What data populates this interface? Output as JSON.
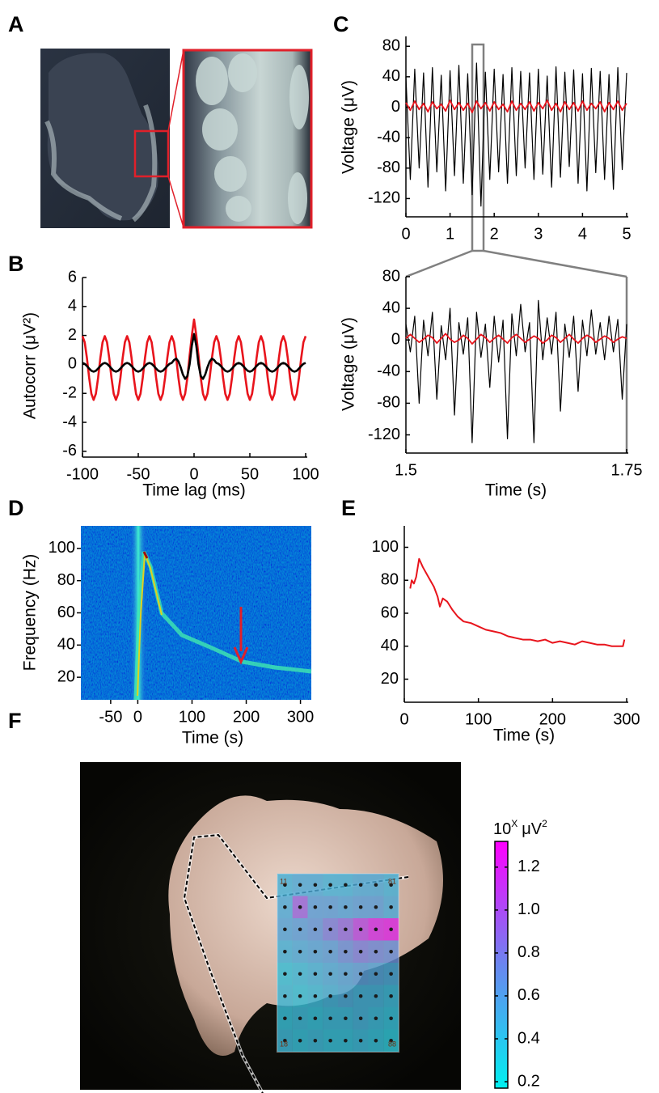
{
  "panel_labels": [
    "A",
    "B",
    "C",
    "D",
    "E",
    "F"
  ],
  "chart_data": [
    {
      "type": "line",
      "ylabel": "Autocorr (μV²)",
      "xlabel": "Time lag (ms)",
      "xlim": [
        -100,
        100
      ],
      "ylim": [
        -6.4,
        6
      ],
      "xticks": [
        -100,
        -50,
        0,
        50,
        100
      ],
      "yticks": [
        6,
        4,
        2,
        0,
        -2,
        -4,
        -6
      ],
      "x": [
        -100,
        -98,
        -96,
        -94,
        -92,
        -90,
        -88,
        -86,
        -84,
        -82,
        -80,
        -78,
        -76,
        -74,
        -72,
        -70,
        -68,
        -66,
        -64,
        -62,
        -60,
        -58,
        -56,
        -54,
        -52,
        -50,
        -48,
        -46,
        -44,
        -42,
        -40,
        -38,
        -36,
        -34,
        -32,
        -30,
        -28,
        -26,
        -24,
        -22,
        -20,
        -18,
        -16,
        -14,
        -12,
        -10,
        -8,
        -6,
        -4,
        -2,
        0,
        2,
        4,
        6,
        8,
        10,
        12,
        14,
        16,
        18,
        20,
        22,
        24,
        26,
        28,
        30,
        32,
        34,
        36,
        38,
        40,
        42,
        44,
        46,
        48,
        50,
        52,
        54,
        56,
        58,
        60,
        62,
        64,
        66,
        68,
        70,
        72,
        74,
        76,
        78,
        80,
        82,
        84,
        86,
        88,
        90,
        92,
        94,
        96,
        98,
        100
      ],
      "series": [
        {
          "color": "#e8141c",
          "values": [
            1.95,
            1.53,
            0.43,
            -0.93,
            -2.03,
            -2.45,
            -2.03,
            -0.93,
            0.43,
            1.53,
            1.95,
            1.53,
            0.43,
            -0.93,
            -2.03,
            -2.45,
            -2.03,
            -0.93,
            0.43,
            1.53,
            1.95,
            1.53,
            0.43,
            -0.93,
            -2.03,
            -2.45,
            -2.03,
            -0.93,
            0.43,
            1.53,
            1.95,
            1.53,
            0.43,
            -0.93,
            -2.03,
            -2.45,
            -2.03,
            -0.93,
            0.43,
            1.53,
            1.95,
            1.53,
            0.43,
            -0.93,
            -2.03,
            -2.45,
            -2.03,
            -0.93,
            0.6,
            2.0,
            3.1,
            2.0,
            0.6,
            -0.93,
            -2.03,
            -2.45,
            -2.03,
            -0.93,
            0.43,
            1.53,
            1.95,
            1.53,
            0.43,
            -0.93,
            -2.03,
            -2.45,
            -2.03,
            -0.93,
            0.43,
            1.53,
            1.95,
            1.53,
            0.43,
            -0.93,
            -2.03,
            -2.45,
            -2.03,
            -0.93,
            0.43,
            1.53,
            1.95,
            1.53,
            0.43,
            -0.93,
            -2.03,
            -2.45,
            -2.03,
            -0.93,
            0.43,
            1.53,
            1.95,
            1.53,
            0.43,
            -0.93,
            -2.03,
            -2.45,
            -2.03,
            -0.93,
            0.43,
            1.53,
            1.95
          ]
        },
        {
          "color": "#000000",
          "values": [
            0.1,
            0.04,
            -0.11,
            -0.29,
            -0.44,
            -0.5,
            -0.44,
            -0.29,
            -0.11,
            0.04,
            0.1,
            0.04,
            -0.11,
            -0.29,
            -0.44,
            -0.5,
            -0.44,
            -0.29,
            -0.11,
            0.04,
            0.1,
            0.04,
            -0.11,
            -0.29,
            -0.44,
            -0.5,
            -0.44,
            -0.29,
            -0.11,
            0.04,
            0.1,
            0.04,
            -0.11,
            -0.29,
            -0.44,
            -0.5,
            -0.44,
            -0.29,
            -0.11,
            0.04,
            0.1,
            0.3,
            0.4,
            0.2,
            -0.2,
            -0.7,
            -1.0,
            -0.8,
            0.0,
            1.3,
            2.1,
            1.3,
            0.0,
            -0.8,
            -1.0,
            -0.7,
            -0.2,
            0.2,
            0.4,
            0.3,
            0.1,
            0.04,
            -0.11,
            -0.29,
            -0.44,
            -0.5,
            -0.44,
            -0.29,
            -0.11,
            0.04,
            0.1,
            0.04,
            -0.11,
            -0.29,
            -0.44,
            -0.5,
            -0.44,
            -0.29,
            -0.11,
            0.04,
            0.1,
            0.04,
            -0.11,
            -0.29,
            -0.44,
            -0.5,
            -0.44,
            -0.29,
            -0.11,
            0.04,
            0.1,
            0.04,
            -0.11,
            -0.29,
            -0.44,
            -0.5,
            -0.44,
            -0.29,
            -0.11,
            0.04,
            0.1
          ]
        }
      ]
    },
    {
      "type": "line",
      "ylabel": "Voltage (μV)",
      "xlim": [
        0,
        5
      ],
      "ylim": [
        -144,
        93
      ],
      "xticks": [
        0,
        1,
        2,
        3,
        4,
        5
      ],
      "yticks": [
        80,
        40,
        0,
        -40,
        -80,
        -120
      ],
      "x": [
        0,
        0.1,
        0.2,
        0.3,
        0.4,
        0.5,
        0.6,
        0.7,
        0.8,
        0.9,
        1,
        1.1,
        1.2,
        1.3,
        1.4,
        1.5,
        1.6,
        1.7,
        1.8,
        1.9,
        2,
        2.1,
        2.2,
        2.3,
        2.4,
        2.5,
        2.6,
        2.7,
        2.8,
        2.9,
        3,
        3.1,
        3.2,
        3.3,
        3.4,
        3.5,
        3.6,
        3.7,
        3.8,
        3.9,
        4,
        4.1,
        4.2,
        4.3,
        4.4,
        4.5,
        4.6,
        4.7,
        4.8,
        4.9,
        5
      ],
      "series": [
        {
          "color": "#000000",
          "values": [
            40,
            -95,
            50,
            -80,
            45,
            -105,
            52,
            -85,
            42,
            -110,
            48,
            -90,
            55,
            -100,
            44,
            -115,
            58,
            -130,
            46,
            -95,
            50,
            -85,
            43,
            -100,
            52,
            -90,
            47,
            -80,
            45,
            -95,
            50,
            -88,
            41,
            -105,
            53,
            -92,
            46,
            -78,
            49,
            -100,
            44,
            -110,
            51,
            -86,
            47,
            -95,
            43,
            -108,
            52,
            -82,
            45
          ]
        },
        {
          "color": "#e8141c",
          "values": [
            6,
            -4,
            8,
            -3,
            5,
            -6,
            7,
            -2,
            4,
            -5,
            9,
            -3,
            6,
            -4,
            5,
            -7,
            8,
            -2,
            6,
            -5,
            7,
            -3,
            4,
            -6,
            8,
            -4,
            5,
            -3,
            7,
            -5,
            6,
            -2,
            9,
            -4,
            5,
            -6,
            7,
            -3,
            6,
            -5,
            8,
            -4,
            5,
            -2,
            7,
            -6,
            6,
            -3,
            8,
            -4,
            5
          ]
        }
      ]
    },
    {
      "type": "line",
      "ylabel": "Voltage (μV)",
      "xlabel": "Time (s)",
      "xlim": [
        1.5,
        1.75
      ],
      "ylim": [
        -143,
        80
      ],
      "xticks": [
        1.5,
        1.75
      ],
      "yticks": [
        80,
        40,
        0,
        -40,
        -80,
        -120
      ],
      "x": [
        1.5,
        1.505,
        1.51,
        1.515,
        1.52,
        1.525,
        1.53,
        1.535,
        1.54,
        1.545,
        1.55,
        1.555,
        1.56,
        1.565,
        1.57,
        1.575,
        1.58,
        1.585,
        1.59,
        1.595,
        1.6,
        1.605,
        1.61,
        1.615,
        1.62,
        1.625,
        1.63,
        1.635,
        1.64,
        1.645,
        1.65,
        1.655,
        1.66,
        1.665,
        1.67,
        1.675,
        1.68,
        1.685,
        1.69,
        1.695,
        1.7,
        1.705,
        1.71,
        1.715,
        1.72,
        1.725,
        1.73,
        1.735,
        1.74,
        1.745,
        1.75
      ],
      "series": [
        {
          "color": "#000000",
          "values": [
            20,
            -15,
            30,
            -80,
            25,
            -20,
            35,
            -75,
            18,
            -25,
            40,
            -95,
            22,
            -18,
            28,
            -130,
            35,
            -22,
            20,
            -60,
            30,
            -28,
            25,
            -125,
            33,
            -20,
            45,
            -15,
            22,
            -130,
            50,
            -25,
            28,
            -18,
            35,
            -90,
            20,
            -22,
            30,
            -65,
            25,
            -20,
            38,
            -18,
            22,
            -25,
            30,
            -15,
            26,
            -75,
            20
          ]
        },
        {
          "color": "#e8141c",
          "values": [
            2,
            7,
            2,
            -3,
            1,
            6,
            3,
            -4,
            2,
            8,
            1,
            -3,
            0,
            6,
            2,
            -5,
            1,
            7,
            3,
            -3,
            2,
            6,
            1,
            -4,
            3,
            7,
            2,
            -3,
            1,
            5,
            2,
            -4,
            0,
            6,
            3,
            -3,
            2,
            7,
            1,
            -4,
            2,
            6,
            3,
            -3,
            1,
            5,
            2,
            -3,
            1,
            4,
            2
          ]
        }
      ]
    },
    {
      "type": "image",
      "ylabel": "Frequency (Hz)",
      "xlabel": "Time (s)",
      "xlim": [
        -105,
        320
      ],
      "ylim": [
        6,
        114
      ],
      "xticks": [
        -50,
        0,
        100,
        200,
        300
      ],
      "yticks": [
        20,
        40,
        60,
        80,
        100
      ]
    },
    {
      "type": "line",
      "xlabel": "Time (s)",
      "xlim": [
        0,
        300
      ],
      "ylim": [
        6,
        113
      ],
      "xticks": [
        0,
        100,
        200,
        300
      ],
      "yticks": [
        20,
        40,
        60,
        80,
        100
      ],
      "x": [
        8,
        10,
        13,
        16,
        20,
        25,
        30,
        35,
        40,
        45,
        48,
        52,
        58,
        65,
        72,
        80,
        90,
        100,
        110,
        120,
        130,
        140,
        150,
        160,
        170,
        180,
        190,
        200,
        210,
        220,
        230,
        240,
        250,
        260,
        270,
        280,
        290,
        295,
        297
      ],
      "series": [
        {
          "color": "#e8141c",
          "values": [
            75,
            80,
            78,
            82,
            93,
            88,
            84,
            80,
            76,
            70,
            64,
            69,
            67,
            62,
            58,
            55,
            54,
            52,
            50,
            49,
            48,
            46,
            45,
            44,
            44,
            43,
            44,
            42,
            43,
            42,
            41,
            43,
            42,
            41,
            41,
            40,
            40,
            40,
            44
          ]
        }
      ]
    },
    {
      "type": "heatmap",
      "label_base": "10",
      "label_exp": "X",
      "label_unit": "μV",
      "label_unit_exp": "2",
      "ylim": [
        0.17,
        1.32
      ],
      "yticks": [
        0.2,
        0.4,
        0.6,
        0.8,
        {
          "value": 1,
          "label": "1.0"
        },
        1.2
      ],
      "colors": [
        "#00f0f0",
        "#6a86f0",
        "#ff00ff"
      ],
      "cell_labels": [
        "11",
        "81",
        "18",
        "88"
      ],
      "grid_values": [
        [
          0.45,
          0.5,
          0.5,
          0.45,
          0.45,
          0.5,
          0.5,
          0.45
        ],
        [
          0.5,
          0.95,
          0.6,
          0.6,
          0.55,
          0.6,
          0.6,
          0.5
        ],
        [
          0.55,
          0.6,
          0.65,
          0.8,
          0.9,
          1.1,
          1.25,
          1.3
        ],
        [
          0.45,
          0.5,
          0.55,
          0.6,
          0.7,
          0.8,
          0.75,
          0.7
        ],
        [
          0.35,
          0.4,
          0.45,
          0.5,
          0.55,
          0.6,
          0.55,
          0.5
        ],
        [
          0.4,
          0.35,
          0.4,
          0.45,
          0.5,
          0.45,
          0.45,
          0.4
        ],
        [
          0.35,
          0.4,
          0.35,
          0.4,
          0.4,
          0.45,
          0.4,
          0.35
        ],
        [
          0.4,
          0.35,
          0.4,
          0.35,
          0.35,
          0.4,
          0.35,
          0.3
        ]
      ]
    }
  ]
}
